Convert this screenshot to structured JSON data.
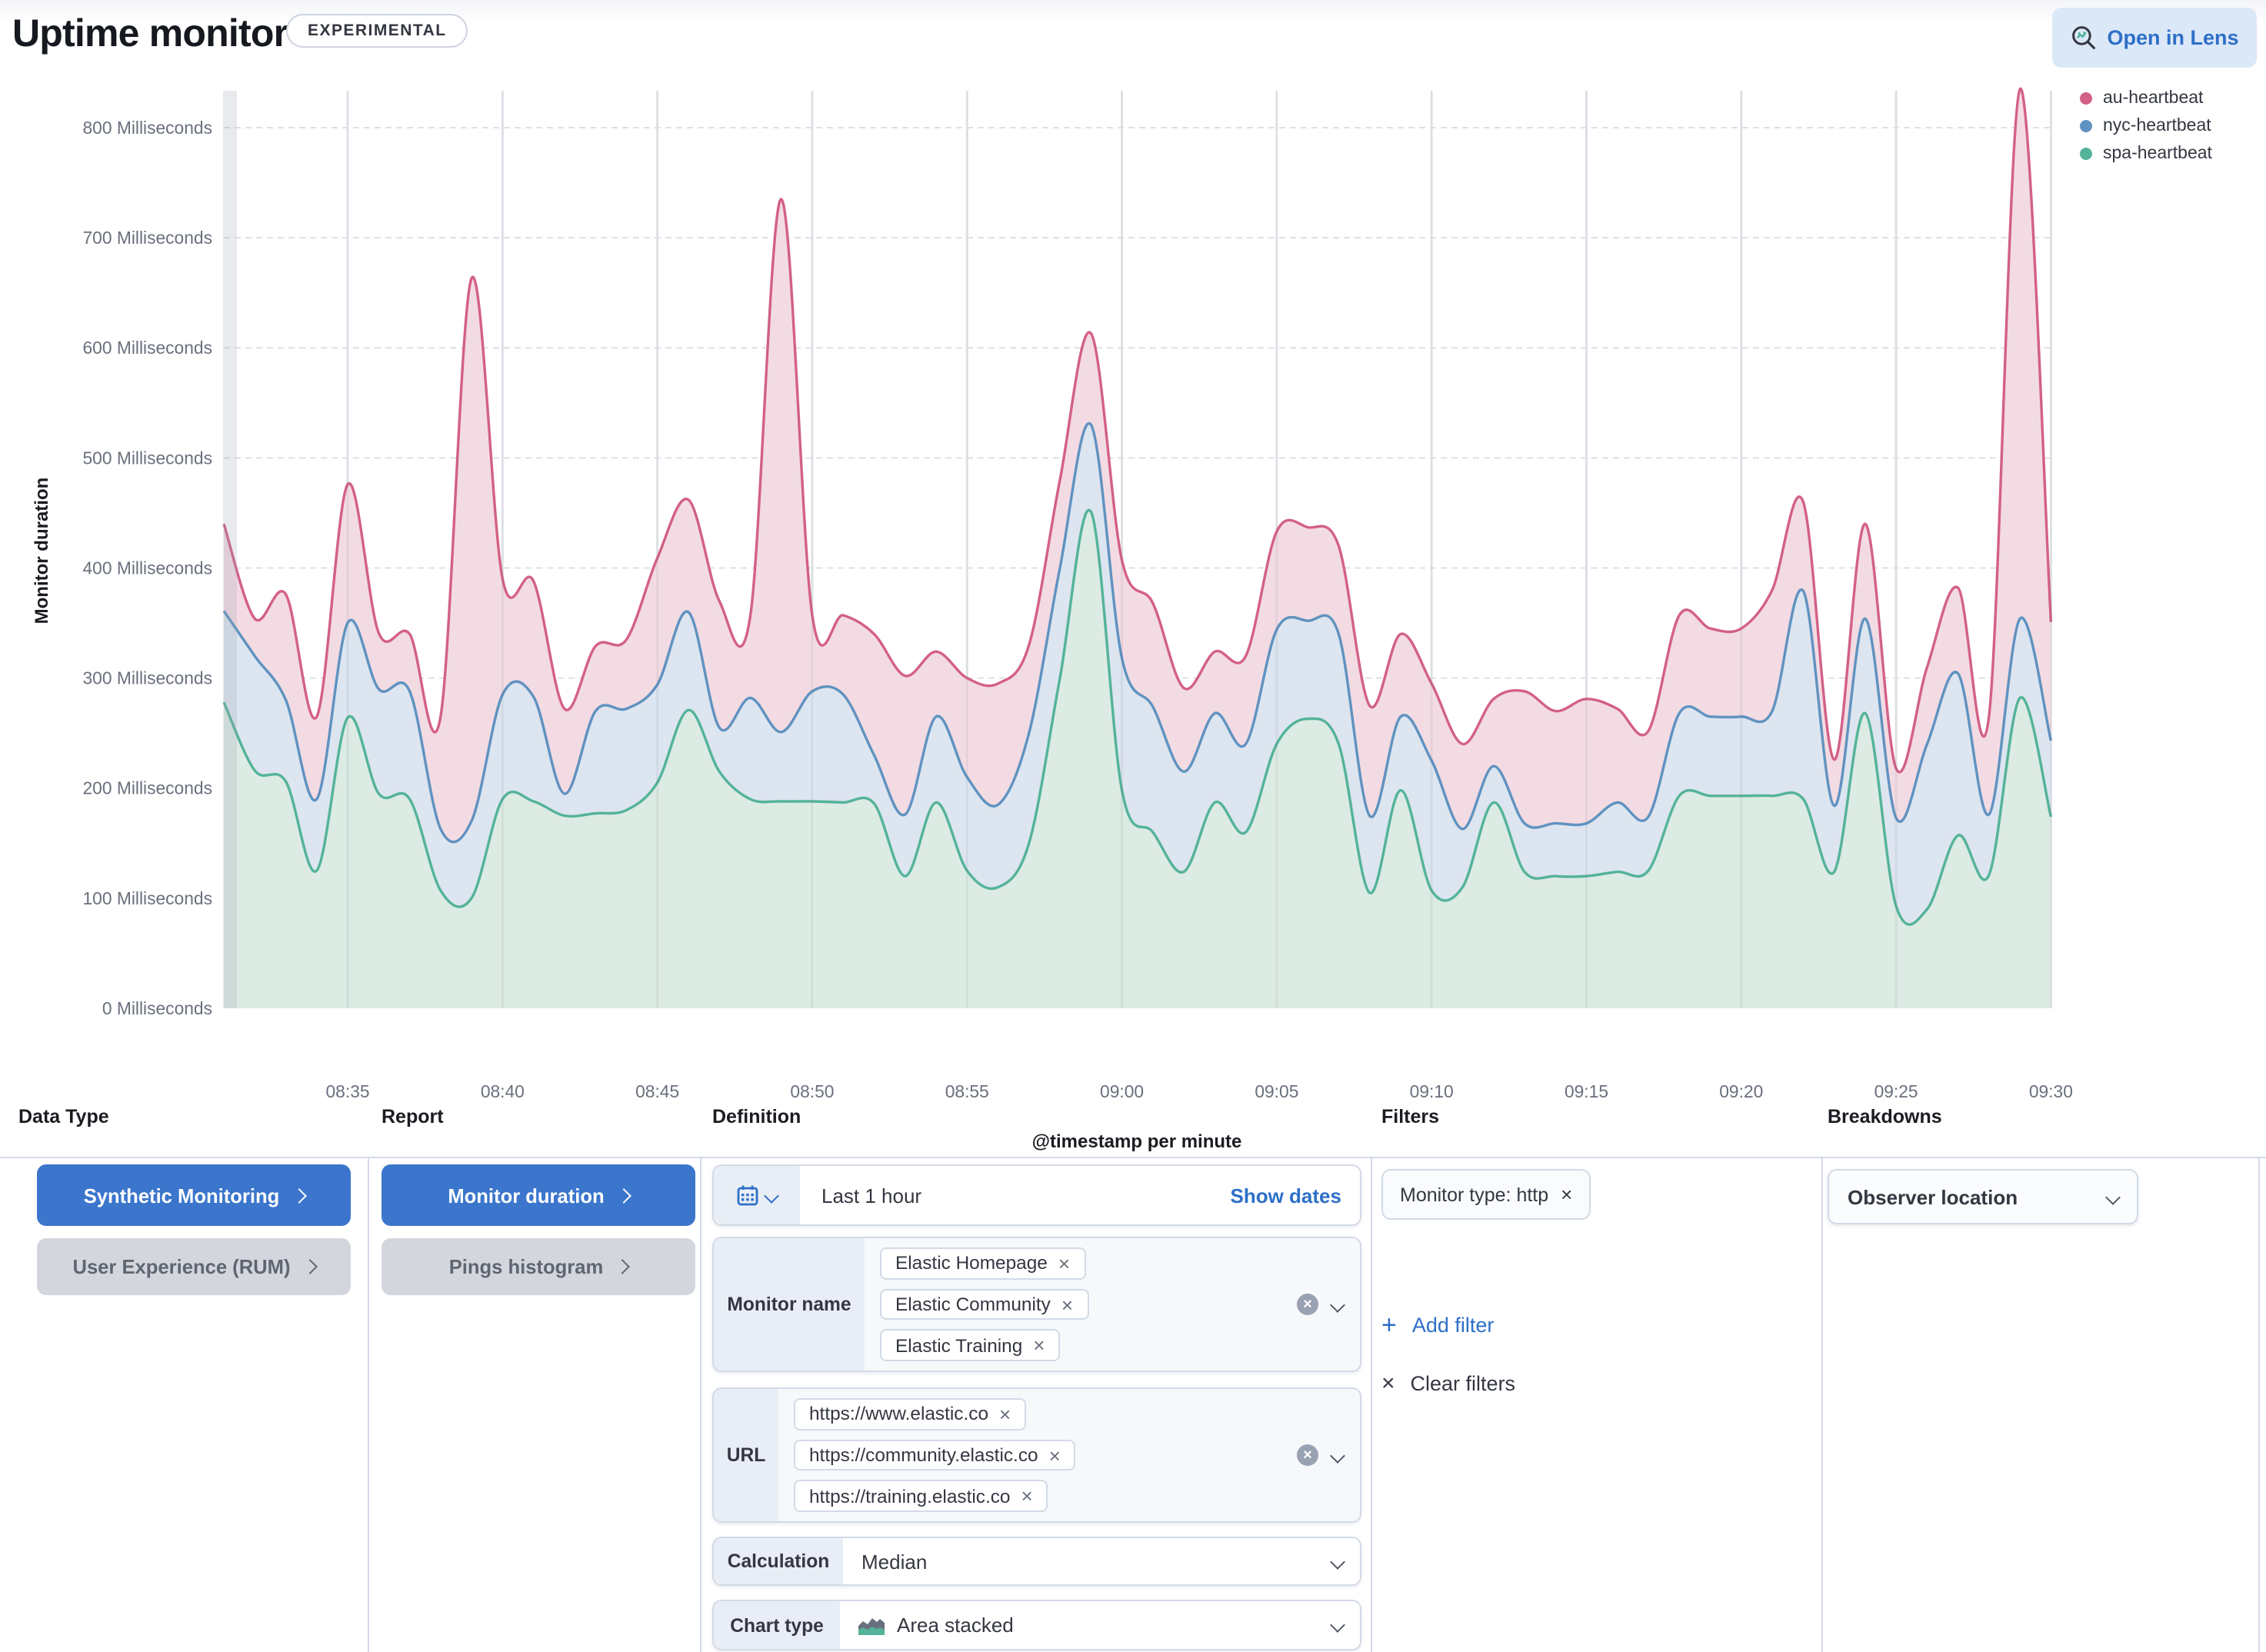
{
  "header": {
    "title": "Uptime monitor duration",
    "badge": "EXPERIMENTAL",
    "open_in_lens": "Open in Lens"
  },
  "chart": {
    "y_axis_title": "Monitor duration",
    "x_axis_title": "@timestamp per minute",
    "y_unit": "Milliseconds",
    "legend": [
      {
        "label": "au-heartbeat",
        "color": "#D36086"
      },
      {
        "label": "nyc-heartbeat",
        "color": "#6092C0"
      },
      {
        "label": "spa-heartbeat",
        "color": "#54B399"
      }
    ]
  },
  "chart_data": {
    "type": "area",
    "title": "",
    "xlabel": "@timestamp per minute",
    "ylabel": "Monitor duration",
    "ylim": [
      0,
      850
    ],
    "y_ticks": [
      0,
      100,
      200,
      300,
      400,
      500,
      600,
      700,
      800
    ],
    "x_ticks": [
      "08:35",
      "08:40",
      "08:45",
      "08:50",
      "08:55",
      "09:00",
      "09:05",
      "09:10",
      "09:15",
      "09:20",
      "09:25",
      "09:30"
    ],
    "x": [
      "08:31",
      "08:32",
      "08:33",
      "08:34",
      "08:35",
      "08:36",
      "08:37",
      "08:38",
      "08:39",
      "08:40",
      "08:41",
      "08:42",
      "08:43",
      "08:44",
      "08:45",
      "08:46",
      "08:47",
      "08:48",
      "08:49",
      "08:50",
      "08:51",
      "08:52",
      "08:53",
      "08:54",
      "08:55",
      "08:56",
      "08:57",
      "08:58",
      "08:59",
      "09:00",
      "09:01",
      "09:02",
      "09:03",
      "09:04",
      "09:05",
      "09:06",
      "09:07",
      "09:08",
      "09:09",
      "09:10",
      "09:11",
      "09:12",
      "09:13",
      "09:14",
      "09:15",
      "09:16",
      "09:17",
      "09:18",
      "09:19",
      "09:20",
      "09:21",
      "09:22",
      "09:23",
      "09:24",
      "09:25",
      "09:26",
      "09:27",
      "09:28",
      "09:29",
      "09:30"
    ],
    "series": [
      {
        "name": "au-heartbeat",
        "color": "#D36086",
        "fill": "#f3dbe3",
        "values": [
          440,
          354,
          376,
          265,
          476,
          341,
          340,
          265,
          663,
          390,
          388,
          272,
          329,
          335,
          409,
          462,
          370,
          356,
          735,
          357,
          357,
          340,
          302,
          324,
          300,
          295,
          330,
          480,
          613,
          407,
          368,
          291,
          324,
          320,
          433,
          437,
          420,
          275,
          340,
          295,
          240,
          281,
          288,
          270,
          281,
          272,
          252,
          357,
          345,
          345,
          380,
          460,
          226,
          440,
          218,
          310,
          382,
          265,
          835,
          351
        ]
      },
      {
        "name": "nyc-heartbeat",
        "color": "#6092C0",
        "fill": "#dce5f0",
        "values": [
          361,
          320,
          280,
          190,
          350,
          290,
          288,
          163,
          170,
          285,
          283,
          195,
          270,
          272,
          294,
          360,
          255,
          282,
          251,
          288,
          285,
          230,
          176,
          265,
          210,
          185,
          250,
          400,
          530,
          318,
          274,
          215,
          268,
          240,
          344,
          352,
          340,
          175,
          265,
          225,
          163,
          220,
          168,
          168,
          168,
          187,
          174,
          268,
          265,
          265,
          270,
          379,
          184,
          354,
          173,
          240,
          304,
          176,
          354,
          243
        ]
      },
      {
        "name": "spa-heartbeat",
        "color": "#54B399",
        "fill": "#dcebe3",
        "values": [
          278,
          216,
          206,
          125,
          264,
          195,
          190,
          107,
          100,
          190,
          188,
          175,
          177,
          180,
          205,
          271,
          215,
          190,
          188,
          188,
          187,
          186,
          120,
          187,
          125,
          110,
          150,
          300,
          451,
          198,
          160,
          124,
          187,
          160,
          240,
          263,
          240,
          105,
          198,
          107,
          110,
          187,
          124,
          120,
          120,
          124,
          125,
          193,
          193,
          193,
          193,
          190,
          124,
          268,
          93,
          90,
          157,
          121,
          282,
          174
        ]
      }
    ]
  },
  "panels": {
    "headers": [
      "Data Type",
      "Report",
      "Definition",
      "Filters",
      "Breakdowns"
    ],
    "data_type": {
      "buttons": [
        {
          "label": "Synthetic Monitoring"
        },
        {
          "label": "User Experience (RUM)"
        }
      ]
    },
    "report": {
      "buttons": [
        {
          "label": "Monitor duration"
        },
        {
          "label": "Pings histogram"
        }
      ]
    },
    "definition": {
      "time_range": "Last 1 hour",
      "show_dates": "Show dates",
      "monitor_name": {
        "label": "Monitor name",
        "tags": [
          "Elastic Homepage",
          "Elastic Community",
          "Elastic Training"
        ]
      },
      "url": {
        "label": "URL",
        "tags": [
          "https://www.elastic.co",
          "https://community.elastic.co",
          "https://training.elastic.co"
        ]
      },
      "calculation": {
        "label": "Calculation",
        "value": "Median"
      },
      "chart_type": {
        "label": "Chart type",
        "value": "Area stacked"
      }
    },
    "filters": {
      "pill": "Monitor type: http",
      "add_label": "Add filter",
      "clear_label": "Clear filters"
    },
    "breakdowns": {
      "value": "Observer location"
    }
  },
  "colors": {
    "primary_button": "#3b76cc",
    "link_blue": "#2e6fc7",
    "border": "#d3dae6",
    "text": "#343741",
    "axis_text": "#69707d"
  }
}
